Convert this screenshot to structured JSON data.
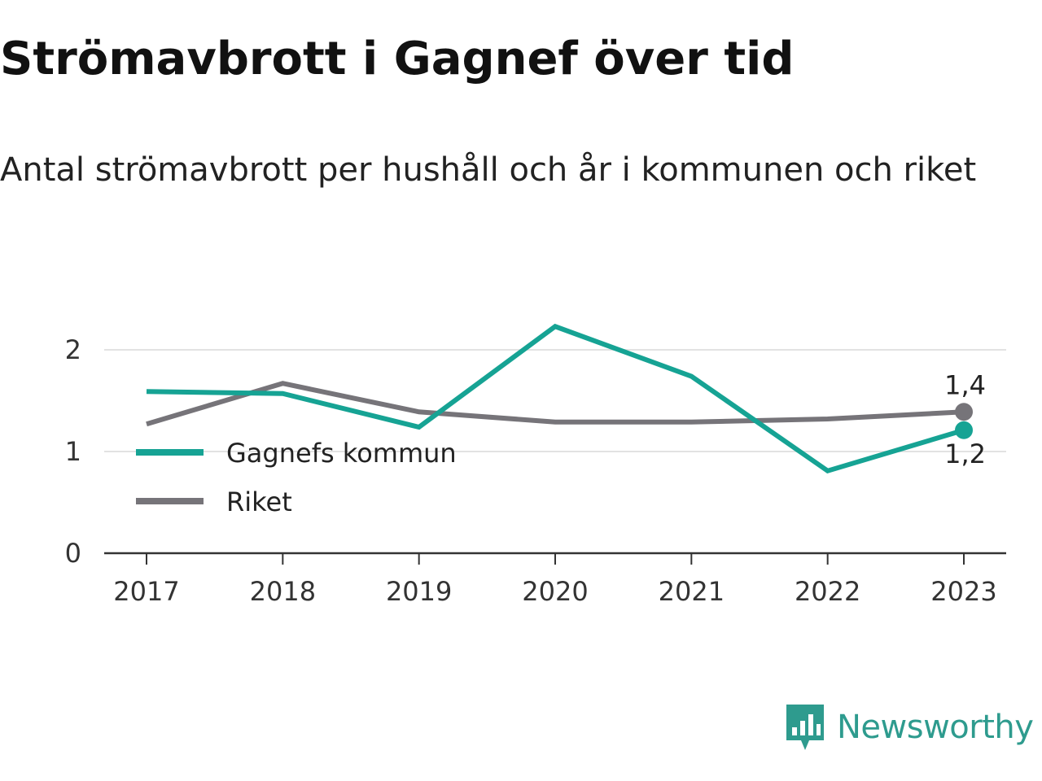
{
  "title": "Strömavbrott i Gagnef över tid",
  "subtitle": "Antal strömavbrott per hushåll och år i kommunen och riket",
  "brand": {
    "name": "Newsworthy",
    "color": "#2e9b8e"
  },
  "chart_data": {
    "type": "line",
    "title": "Strömavbrott i Gagnef över tid",
    "subtitle": "Antal strömavbrott per hushåll och år i kommunen och riket",
    "x": [
      2017,
      2018,
      2019,
      2020,
      2021,
      2022,
      2023
    ],
    "x_tick_labels": [
      "2017",
      "2018",
      "2019",
      "2020",
      "2021",
      "2022",
      "2023"
    ],
    "y_ticks": [
      0,
      1,
      2
    ],
    "y_tick_labels": [
      "0",
      "1",
      "2"
    ],
    "ylim": [
      0,
      2.25
    ],
    "grid": true,
    "legend_position": "bottom-left",
    "series": [
      {
        "name": "Gagnefs kommun",
        "color": "#16a394",
        "values": [
          1.59,
          1.57,
          1.24,
          2.23,
          1.74,
          0.81,
          1.21
        ],
        "end_label": "1,2"
      },
      {
        "name": "Riket",
        "color": "#767479",
        "values": [
          1.27,
          1.67,
          1.39,
          1.29,
          1.29,
          1.32,
          1.39
        ],
        "end_label": "1,4"
      }
    ]
  }
}
